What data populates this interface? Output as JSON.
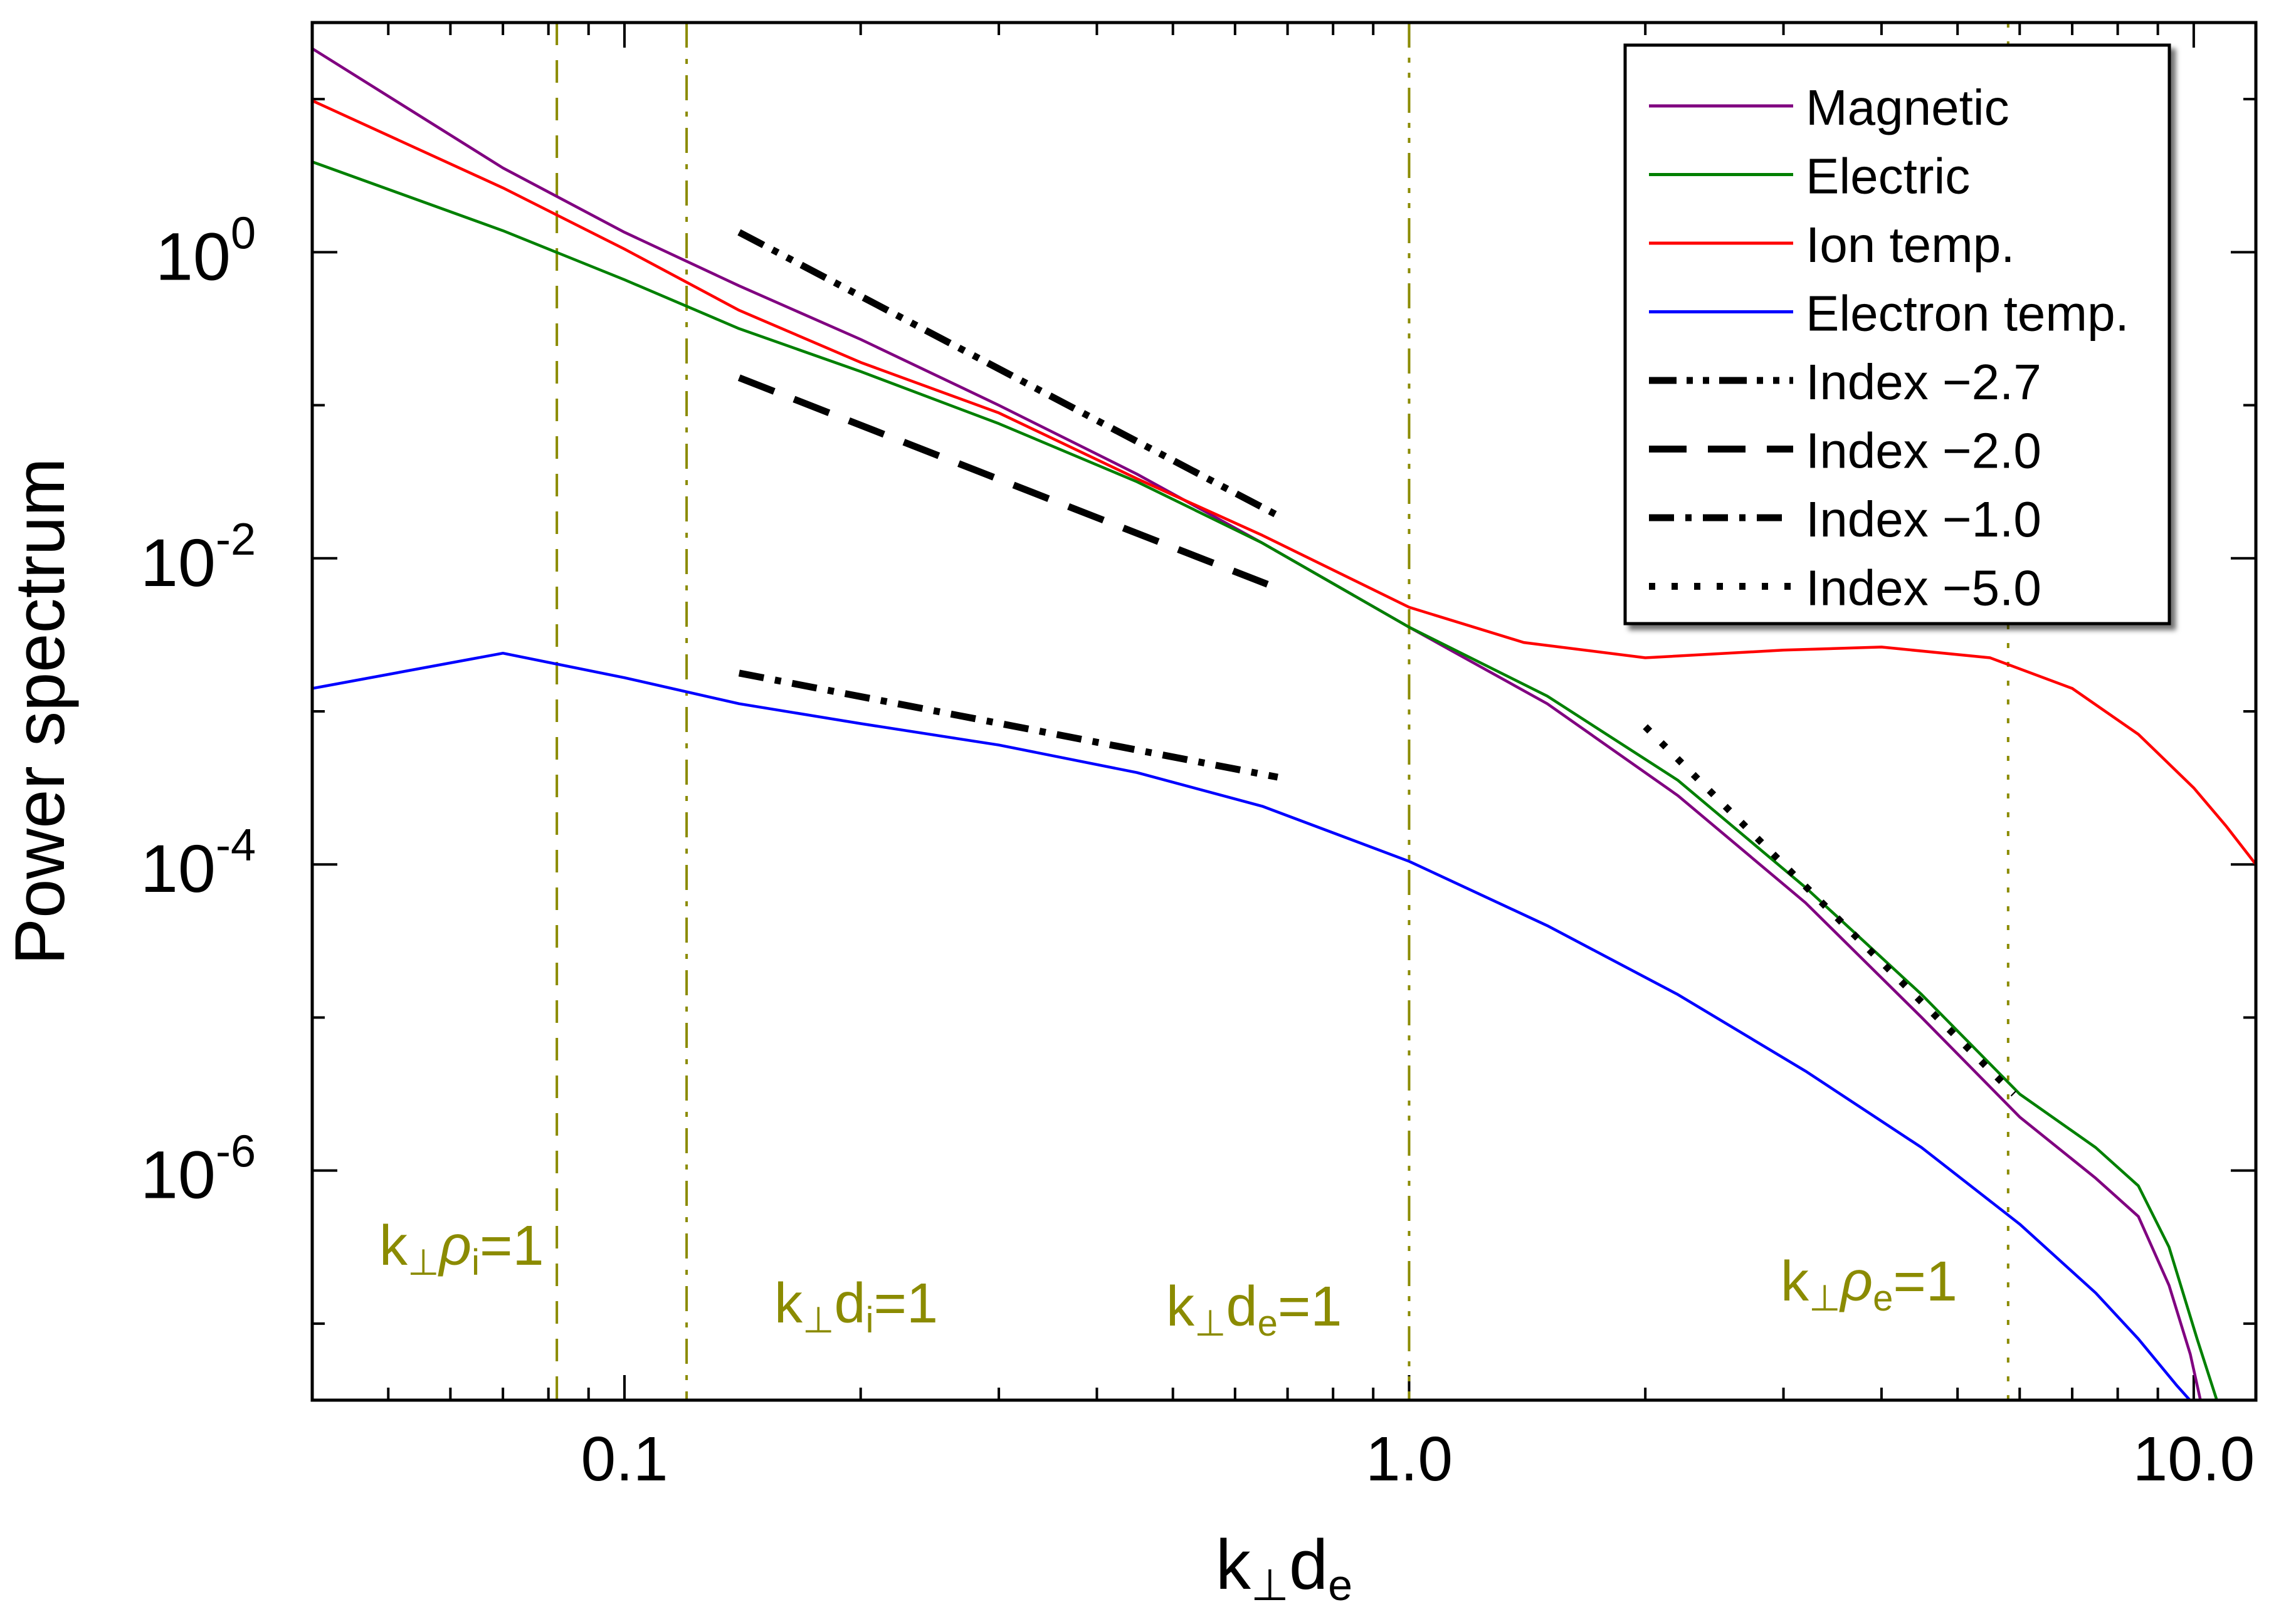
{
  "chart_data": {
    "type": "line",
    "title": "",
    "xlabel": {
      "base": "k",
      "sub1": "⊥",
      "mid": "d",
      "sub2": "e"
    },
    "ylabel": "Power spectrum",
    "xscale": "log",
    "yscale": "log",
    "xlim": [
      0.04,
      12.0
    ],
    "ylim_exp": [
      -7.5,
      1.5
    ],
    "xticks": [
      {
        "value": 0.1,
        "label": "0.1"
      },
      {
        "value": 1.0,
        "label": "1.0"
      },
      {
        "value": 10.0,
        "label": "10.0"
      }
    ],
    "yticks": [
      {
        "exp": 0,
        "base": "10",
        "sup": "0"
      },
      {
        "exp": -2,
        "base": "10",
        "sup": "-2"
      },
      {
        "exp": -4,
        "base": "10",
        "sup": "-4"
      },
      {
        "exp": -6,
        "base": "10",
        "sup": "-6"
      }
    ],
    "series": [
      {
        "name": "Magnetic",
        "color": "#800080",
        "x": [
          0.04,
          0.07,
          0.1,
          0.14,
          0.2,
          0.3,
          0.45,
          0.65,
          1.0,
          1.5,
          2.2,
          3.2,
          4.5,
          6.0,
          7.5,
          8.5,
          9.3,
          9.9,
          10.3
        ],
        "y_exp": [
          1.33,
          0.55,
          0.13,
          -0.22,
          -0.57,
          -1.0,
          -1.45,
          -1.9,
          -2.45,
          -2.95,
          -3.55,
          -4.25,
          -5.0,
          -5.65,
          -6.05,
          -6.3,
          -6.75,
          -7.2,
          -7.6
        ]
      },
      {
        "name": "Electric",
        "color": "#008000",
        "x": [
          0.04,
          0.07,
          0.1,
          0.14,
          0.2,
          0.3,
          0.45,
          0.65,
          1.0,
          1.5,
          2.2,
          3.2,
          4.5,
          6.0,
          7.5,
          8.5,
          9.3,
          10.1,
          10.7,
          11.1
        ],
        "y_exp": [
          0.59,
          0.14,
          -0.18,
          -0.5,
          -0.78,
          -1.12,
          -1.5,
          -1.9,
          -2.45,
          -2.9,
          -3.45,
          -4.15,
          -4.85,
          -5.5,
          -5.85,
          -6.1,
          -6.5,
          -7.1,
          -7.5,
          -7.6
        ]
      },
      {
        "name": "Ion temp.",
        "color": "#ff0000",
        "x": [
          0.04,
          0.07,
          0.1,
          0.14,
          0.2,
          0.3,
          0.45,
          0.65,
          1.0,
          1.4,
          2.0,
          3.0,
          4.0,
          5.5,
          7.0,
          8.5,
          10.0,
          11.0,
          12.0
        ],
        "y_exp": [
          0.99,
          0.42,
          0.02,
          -0.38,
          -0.72,
          -1.05,
          -1.48,
          -1.85,
          -2.32,
          -2.55,
          -2.65,
          -2.6,
          -2.58,
          -2.65,
          -2.85,
          -3.15,
          -3.5,
          -3.75,
          -4.0
        ]
      },
      {
        "name": "Electron temp.",
        "color": "#0000ff",
        "x": [
          0.04,
          0.07,
          0.1,
          0.14,
          0.2,
          0.3,
          0.45,
          0.65,
          1.0,
          1.5,
          2.2,
          3.2,
          4.5,
          6.0,
          7.5,
          8.5,
          9.5,
          10.5,
          11.3
        ],
        "y_exp": [
          -2.85,
          -2.62,
          -2.78,
          -2.95,
          -3.08,
          -3.22,
          -3.4,
          -3.62,
          -3.98,
          -4.4,
          -4.85,
          -5.35,
          -5.85,
          -6.35,
          -6.8,
          -7.1,
          -7.4,
          -7.65,
          -7.75
        ]
      }
    ],
    "reference_lines": [
      {
        "name": "Index −2.7",
        "dash": "dash-dot-dot",
        "x": [
          0.14,
          0.68
        ],
        "y_exp": [
          0.13,
          -1.72
        ]
      },
      {
        "name": "Index −2.0",
        "dash": "dash",
        "x": [
          0.14,
          0.66
        ],
        "y_exp": [
          -0.82,
          -2.17
        ]
      },
      {
        "name": "Index −1.0",
        "dash": "dash-dot",
        "x": [
          0.14,
          0.68
        ],
        "y_exp": [
          -2.75,
          -3.43
        ]
      },
      {
        "name": "Index −5.0",
        "dash": "dot",
        "x": [
          2.0,
          5.9
        ],
        "y_exp": [
          -3.1,
          -5.5
        ]
      }
    ],
    "scale_markers": [
      {
        "x": 0.082,
        "dash": "dash",
        "label_base": "k",
        "label_sub1": "⊥",
        "label_greek": "ρ",
        "label_sub2": "i",
        "label_tail": "=1"
      },
      {
        "x": 0.12,
        "dash": "dash-dot",
        "label_base": "k",
        "label_sub1": "⊥",
        "label_greek": "d",
        "label_sub2": "i",
        "label_tail": "=1"
      },
      {
        "x": 1.0,
        "dash": "dash-dot-dot",
        "label_base": "k",
        "label_sub1": "⊥",
        "label_greek": "d",
        "label_sub2": "e",
        "label_tail": "=1"
      },
      {
        "x": 5.8,
        "dash": "dot",
        "label_base": "k",
        "label_sub1": "⊥",
        "label_greek": "ρ",
        "label_sub2": "e",
        "label_tail": "=1"
      }
    ],
    "marker_color": "#8b8b00",
    "legend": {
      "position": "top-right",
      "entries": [
        "Magnetic",
        "Electric",
        "Ion temp.",
        "Electron temp.",
        "Index −2.7",
        "Index −2.0",
        "Index −1.0",
        "Index −5.0"
      ]
    }
  }
}
